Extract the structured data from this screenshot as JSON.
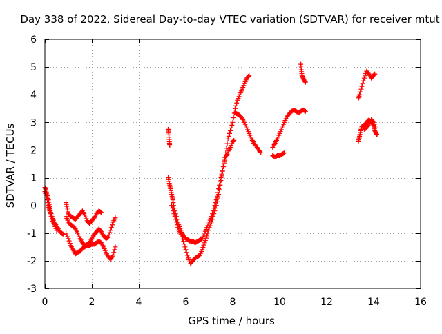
{
  "chart_data": {
    "type": "scatter",
    "title": "Day 338 of 2022, Sidereal Day-to-day VTEC variation (SDTVAR) for receiver mtut",
    "xlabel": "GPS time / hours",
    "ylabel": "SDTVAR / TECUs",
    "xlim": [
      0,
      16
    ],
    "ylim": [
      -3,
      6
    ],
    "xticks": [
      0,
      2,
      4,
      6,
      8,
      10,
      12,
      14,
      16
    ],
    "yticks": [
      -3,
      -2,
      -1,
      0,
      1,
      2,
      3,
      4,
      5,
      6
    ],
    "grid": true,
    "marker": "+",
    "color": "#ff0000",
    "series": [
      {
        "segments": [
          [
            [
              0.0,
              0.65
            ],
            [
              0.05,
              0.55
            ],
            [
              0.1,
              0.35
            ],
            [
              0.15,
              0.2
            ],
            [
              0.2,
              -0.05
            ],
            [
              0.25,
              -0.25
            ],
            [
              0.3,
              -0.4
            ],
            [
              0.4,
              -0.6
            ],
            [
              0.5,
              -0.75
            ],
            [
              0.6,
              -0.9
            ],
            [
              0.7,
              -1.0
            ],
            [
              0.8,
              -1.05
            ]
          ],
          [
            [
              0.0,
              0.5
            ],
            [
              0.08,
              0.3
            ],
            [
              0.15,
              0.0
            ],
            [
              0.2,
              -0.2
            ],
            [
              0.3,
              -0.5
            ],
            [
              0.4,
              -0.7
            ],
            [
              0.5,
              -0.9
            ]
          ],
          [
            [
              0.9,
              0.1
            ],
            [
              0.95,
              -0.1
            ],
            [
              1.0,
              -0.3
            ],
            [
              1.1,
              -0.4
            ],
            [
              1.2,
              -0.45
            ],
            [
              1.3,
              -0.5
            ],
            [
              1.4,
              -0.4
            ],
            [
              1.5,
              -0.3
            ],
            [
              1.6,
              -0.2
            ],
            [
              1.7,
              -0.35
            ],
            [
              1.8,
              -0.55
            ],
            [
              1.9,
              -0.65
            ],
            [
              2.0,
              -0.55
            ],
            [
              2.1,
              -0.45
            ],
            [
              2.2,
              -0.3
            ],
            [
              2.3,
              -0.2
            ],
            [
              2.4,
              -0.25
            ]
          ],
          [
            [
              0.9,
              -0.4
            ],
            [
              1.0,
              -0.6
            ],
            [
              1.1,
              -0.7
            ],
            [
              1.2,
              -0.75
            ],
            [
              1.3,
              -0.85
            ],
            [
              1.4,
              -1.0
            ],
            [
              1.5,
              -1.2
            ],
            [
              1.6,
              -1.35
            ],
            [
              1.7,
              -1.45
            ],
            [
              1.8,
              -1.4
            ],
            [
              1.9,
              -1.35
            ],
            [
              2.0,
              -1.2
            ],
            [
              2.1,
              -1.05
            ],
            [
              2.2,
              -0.95
            ],
            [
              2.3,
              -0.85
            ],
            [
              2.4,
              -0.95
            ],
            [
              2.5,
              -1.1
            ],
            [
              2.6,
              -1.2
            ],
            [
              2.7,
              -1.15
            ],
            [
              2.8,
              -0.9
            ],
            [
              2.9,
              -0.6
            ],
            [
              3.0,
              -0.45
            ]
          ],
          [
            [
              0.9,
              -1.0
            ],
            [
              1.0,
              -1.2
            ],
            [
              1.1,
              -1.45
            ],
            [
              1.2,
              -1.6
            ],
            [
              1.3,
              -1.75
            ],
            [
              1.4,
              -1.7
            ],
            [
              1.5,
              -1.65
            ],
            [
              1.6,
              -1.55
            ],
            [
              1.7,
              -1.5
            ],
            [
              1.8,
              -1.45
            ],
            [
              1.9,
              -1.45
            ],
            [
              2.0,
              -1.4
            ],
            [
              2.1,
              -1.4
            ],
            [
              2.2,
              -1.35
            ],
            [
              2.3,
              -1.3
            ],
            [
              2.4,
              -1.35
            ],
            [
              2.5,
              -1.5
            ],
            [
              2.6,
              -1.7
            ],
            [
              2.7,
              -1.85
            ],
            [
              2.8,
              -1.95
            ],
            [
              2.9,
              -1.8
            ],
            [
              3.0,
              -1.5
            ]
          ],
          [
            [
              5.25,
              2.75
            ],
            [
              5.28,
              2.55
            ],
            [
              5.3,
              2.3
            ],
            [
              5.32,
              2.15
            ]
          ],
          [
            [
              5.25,
              1.0
            ],
            [
              5.3,
              0.8
            ],
            [
              5.35,
              0.6
            ],
            [
              5.4,
              0.4
            ],
            [
              5.45,
              0.2
            ],
            [
              5.5,
              -0.1
            ],
            [
              5.6,
              -0.4
            ],
            [
              5.7,
              -0.7
            ],
            [
              5.8,
              -0.9
            ],
            [
              5.9,
              -1.1
            ],
            [
              6.0,
              -1.2
            ],
            [
              6.1,
              -1.25
            ],
            [
              6.2,
              -1.3
            ],
            [
              6.3,
              -1.3
            ],
            [
              6.4,
              -1.35
            ],
            [
              6.5,
              -1.3
            ],
            [
              6.6,
              -1.25
            ],
            [
              6.7,
              -1.2
            ],
            [
              6.8,
              -1.0
            ],
            [
              6.9,
              -0.8
            ],
            [
              7.0,
              -0.6
            ],
            [
              7.1,
              -0.4
            ],
            [
              7.2,
              -0.1
            ],
            [
              7.3,
              0.2
            ],
            [
              7.4,
              0.6
            ],
            [
              7.5,
              1.0
            ],
            [
              7.6,
              1.4
            ],
            [
              7.7,
              1.75
            ],
            [
              7.8,
              1.9
            ],
            [
              7.9,
              2.1
            ],
            [
              8.0,
              2.3
            ],
            [
              8.05,
              2.35
            ]
          ],
          [
            [
              5.4,
              0.0
            ],
            [
              5.5,
              -0.3
            ],
            [
              5.6,
              -0.6
            ],
            [
              5.7,
              -0.9
            ],
            [
              5.8,
              -1.05
            ],
            [
              5.9,
              -1.3
            ],
            [
              6.0,
              -1.6
            ],
            [
              6.1,
              -1.9
            ],
            [
              6.2,
              -2.1
            ],
            [
              6.3,
              -2.0
            ],
            [
              6.4,
              -1.9
            ],
            [
              6.5,
              -1.85
            ],
            [
              6.6,
              -1.8
            ],
            [
              6.7,
              -1.6
            ],
            [
              6.8,
              -1.35
            ],
            [
              6.9,
              -1.1
            ],
            [
              7.0,
              -0.8
            ],
            [
              7.1,
              -0.6
            ],
            [
              7.2,
              -0.3
            ],
            [
              7.3,
              0.0
            ],
            [
              7.4,
              0.4
            ],
            [
              7.5,
              0.9
            ],
            [
              7.6,
              1.4
            ],
            [
              7.7,
              1.9
            ],
            [
              7.8,
              2.4
            ],
            [
              7.9,
              2.7
            ],
            [
              8.0,
              3.0
            ],
            [
              8.1,
              3.5
            ],
            [
              8.2,
              3.8
            ],
            [
              8.3,
              4.0
            ],
            [
              8.4,
              4.2
            ],
            [
              8.5,
              4.4
            ],
            [
              8.6,
              4.6
            ],
            [
              8.7,
              4.7
            ]
          ],
          [
            [
              8.1,
              3.35
            ],
            [
              8.2,
              3.3
            ],
            [
              8.3,
              3.25
            ],
            [
              8.4,
              3.15
            ],
            [
              8.5,
              3.0
            ],
            [
              8.6,
              2.8
            ],
            [
              8.7,
              2.6
            ],
            [
              8.8,
              2.4
            ],
            [
              8.9,
              2.25
            ],
            [
              9.0,
              2.15
            ],
            [
              9.1,
              2.0
            ],
            [
              9.2,
              1.9
            ]
          ],
          [
            [
              9.7,
              2.1
            ],
            [
              9.8,
              2.25
            ],
            [
              9.9,
              2.4
            ],
            [
              10.0,
              2.6
            ],
            [
              10.1,
              2.8
            ],
            [
              10.2,
              3.0
            ],
            [
              10.3,
              3.2
            ],
            [
              10.4,
              3.3
            ],
            [
              10.5,
              3.4
            ],
            [
              10.6,
              3.45
            ],
            [
              10.7,
              3.4
            ],
            [
              10.8,
              3.35
            ],
            [
              10.9,
              3.4
            ],
            [
              11.0,
              3.45
            ],
            [
              11.1,
              3.4
            ]
          ],
          [
            [
              9.7,
              1.8
            ],
            [
              9.8,
              1.75
            ],
            [
              9.9,
              1.8
            ],
            [
              10.0,
              1.8
            ],
            [
              10.1,
              1.85
            ],
            [
              10.2,
              1.9
            ]
          ],
          [
            [
              10.9,
              5.1
            ],
            [
              10.92,
              4.9
            ],
            [
              10.95,
              4.7
            ],
            [
              11.0,
              4.6
            ],
            [
              11.05,
              4.5
            ],
            [
              11.1,
              4.45
            ]
          ],
          [
            [
              13.35,
              2.3
            ],
            [
              13.4,
              2.5
            ],
            [
              13.45,
              2.7
            ],
            [
              13.5,
              2.85
            ],
            [
              13.6,
              2.9
            ],
            [
              13.7,
              3.0
            ],
            [
              13.8,
              3.1
            ],
            [
              13.9,
              3.0
            ],
            [
              14.0,
              2.9
            ],
            [
              14.05,
              2.7
            ],
            [
              14.1,
              2.6
            ],
            [
              14.15,
              2.55
            ]
          ],
          [
            [
              13.35,
              3.85
            ],
            [
              13.4,
              4.0
            ],
            [
              13.5,
              4.3
            ],
            [
              13.6,
              4.6
            ],
            [
              13.7,
              4.85
            ],
            [
              13.8,
              4.75
            ],
            [
              13.9,
              4.6
            ],
            [
              14.0,
              4.7
            ],
            [
              14.05,
              4.75
            ]
          ],
          [
            [
              13.6,
              2.75
            ],
            [
              13.7,
              2.8
            ],
            [
              13.8,
              2.95
            ],
            [
              13.9,
              3.1
            ],
            [
              14.0,
              3.0
            ],
            [
              14.1,
              2.8
            ]
          ]
        ]
      }
    ]
  }
}
